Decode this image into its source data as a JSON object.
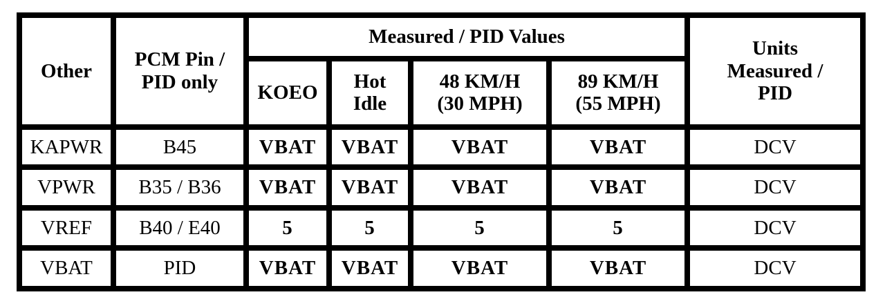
{
  "table": {
    "headers": {
      "other": "Other",
      "pcm_pin": "PCM Pin / PID only",
      "measured_group": "Measured / PID Values",
      "units": "Units Measured / PID",
      "sub": [
        "KOEO",
        "Hot Idle",
        "48 KM/H (30 MPH)",
        "89 KM/H (55 MPH)"
      ]
    },
    "rows": [
      {
        "other": "KAPWR",
        "pin": "B45",
        "values": [
          "VBAT",
          "VBAT",
          "VBAT",
          "VBAT"
        ],
        "units": "DCV"
      },
      {
        "other": "VPWR",
        "pin": "B35 / B36",
        "values": [
          "VBAT",
          "VBAT",
          "VBAT",
          "VBAT"
        ],
        "units": "DCV"
      },
      {
        "other": "VREF",
        "pin": "B40 / E40",
        "values": [
          "5",
          "5",
          "5",
          "5"
        ],
        "units": "DCV"
      },
      {
        "other": "VBAT",
        "pin": "PID",
        "values": [
          "VBAT",
          "VBAT",
          "VBAT",
          "VBAT"
        ],
        "units": "DCV"
      }
    ]
  }
}
